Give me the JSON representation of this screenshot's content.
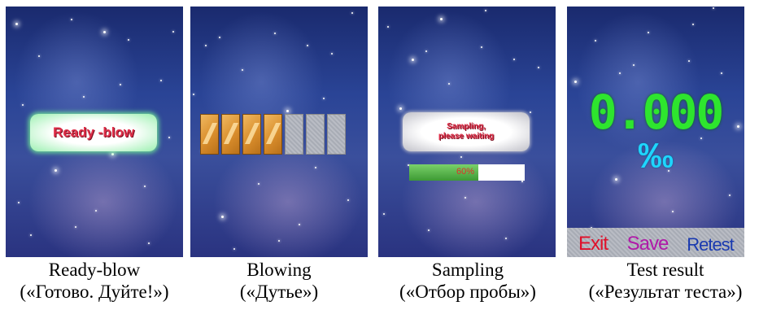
{
  "panels": [
    {
      "caption": "Ready-blow",
      "caption_ru": "(«Готово. Дуйте!»)",
      "badge_text": "Ready -blow"
    },
    {
      "caption": "Blowing",
      "caption_ru": "(«Дутье»)",
      "blocks_filled": 4,
      "blocks_total": 7
    },
    {
      "caption": "Sampling",
      "caption_ru": "(«Отбор пробы»)",
      "status_line1": "Sampling,",
      "status_line2": "please waiting",
      "progress_label": "60%",
      "progress": 0.6
    },
    {
      "caption": "Test result",
      "caption_ru": "(«Результат теста»)",
      "result_value": "0.000",
      "result_unit": "‰",
      "buttons": {
        "exit": "Exit",
        "save": "Save",
        "retest": "Retest"
      }
    }
  ],
  "colors": {
    "badge_text": "#e0304a",
    "result_value": "#2ee52e",
    "result_unit": "#1ed6ff",
    "exit": "#e0102a",
    "save": "#b01aa8",
    "retest": "#1a3ab0"
  }
}
